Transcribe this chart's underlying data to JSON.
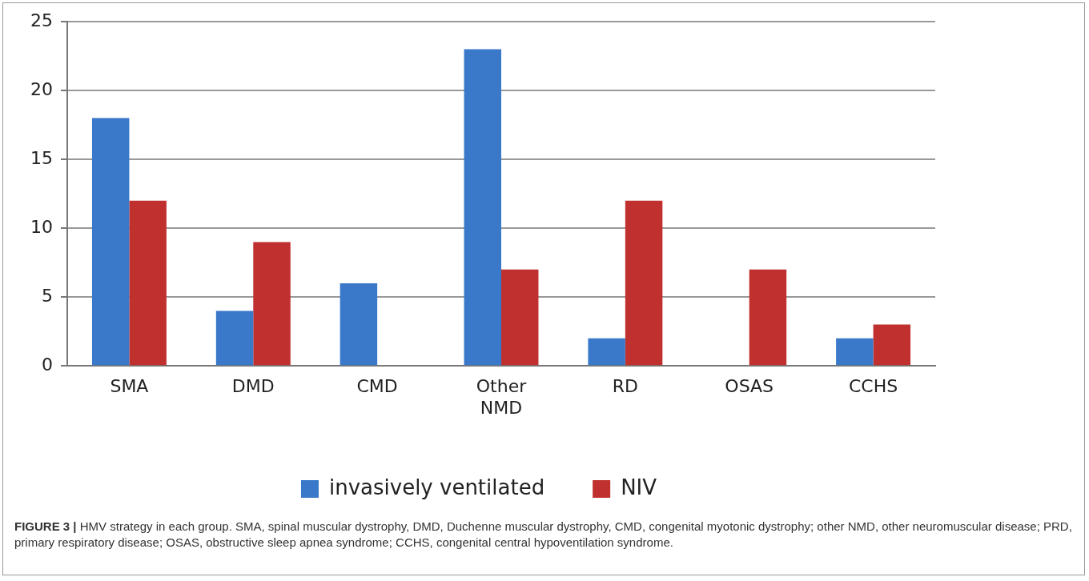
{
  "chart_data": {
    "type": "bar",
    "categories": [
      "SMA",
      "DMD",
      "CMD",
      "Other NMD",
      "RD",
      "OSAS",
      "CCHS"
    ],
    "series": [
      {
        "name": "invasively ventilated",
        "color": "#3a78c9",
        "values": [
          18,
          4,
          6,
          23,
          2,
          0,
          2
        ]
      },
      {
        "name": "NIV",
        "color": "#c0302e",
        "values": [
          12,
          9,
          0,
          7,
          12,
          7,
          3
        ]
      }
    ],
    "ylim": [
      0,
      25
    ],
    "yticks": [
      0,
      5,
      10,
      15,
      20,
      25
    ],
    "grid": "y",
    "legend": "bottom",
    "annotations": [
      "FIGURE 3 | HMV strategy in each group. SMA, spinal muscular dystrophy, DMD, Duchenne muscular dystrophy, CMD, congenital myotonic dystrophy; other NMD, other neuromuscular disease; PRD, primary respiratory disease; OSAS, obstructive sleep apnea syndrome; CCHS, congenital central hypoventilation syndrome."
    ]
  }
}
